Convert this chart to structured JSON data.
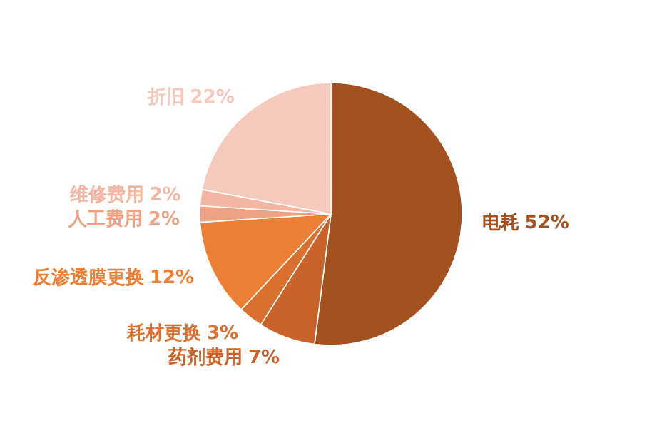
{
  "chart_data": {
    "type": "pie",
    "categories": [
      "电耗",
      "药剂费用",
      "耗材更换",
      "反渗透膜更换",
      "人工费用",
      "维修费用",
      "折旧"
    ],
    "values": [
      52,
      7,
      3,
      12,
      2,
      2,
      22
    ],
    "colors": [
      "#a3521f",
      "#c9632b",
      "#d9702f",
      "#eb7f35",
      "#eea183",
      "#f3b6a3",
      "#f6c9bd"
    ],
    "value_labels": [
      "52%",
      "7%",
      "3%",
      "12%",
      "2%",
      "2%",
      "22%"
    ]
  }
}
